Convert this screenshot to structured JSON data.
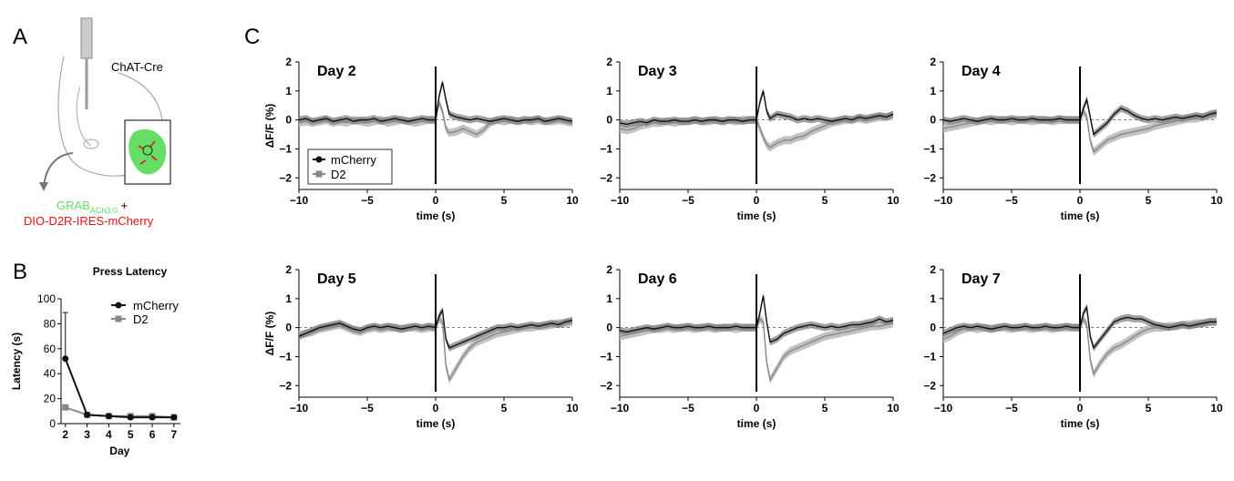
{
  "panels": {
    "a": "A",
    "b": "B",
    "c": "C"
  },
  "schematic": {
    "chat_cre": "ChAT-Cre",
    "grab_main": "GRAB",
    "grab_sub": "ACh3.0",
    "plus": " +",
    "dio": "DIO-D2R-IRES-mCherry",
    "colors": {
      "grab": "#66dd66",
      "dio": "#ee1111",
      "tissue": "#66dd66",
      "cell": "#dd1111"
    }
  },
  "colors": {
    "mcherry": "#111111",
    "d2": "#888888",
    "mcherry_band": "#777777",
    "d2_band": "#bbbbbb"
  },
  "chart_data": [
    {
      "type": "line",
      "panel": "B",
      "title": "Press Latency",
      "xlabel": "Day",
      "ylabel": "Latency (s)",
      "x": [
        2,
        3,
        4,
        5,
        6,
        7
      ],
      "xlim": [
        1.8,
        7.3
      ],
      "ylim": [
        0,
        100
      ],
      "yticks": [
        0,
        20,
        40,
        60,
        80,
        100
      ],
      "series": [
        {
          "name": "mCherry",
          "values": [
            52,
            7,
            6,
            5,
            5,
            5
          ],
          "err_upper": [
            89,
            0,
            0,
            0,
            0,
            0
          ],
          "marker": "circle"
        },
        {
          "name": "D2",
          "values": [
            13,
            7,
            6,
            6,
            6,
            5
          ],
          "marker": "square"
        }
      ],
      "legend": "top-right"
    },
    {
      "type": "line",
      "panel": "C",
      "xlabel": "time (s)",
      "ylabel": "ΔF/F (%)",
      "xlim": [
        -10,
        10
      ],
      "ylim": [
        -2.4,
        2
      ],
      "xticks": [
        -10,
        -5,
        0,
        5,
        10
      ],
      "yticks": [
        -2,
        -1,
        0,
        1,
        2
      ],
      "baseline": 0,
      "event_line": 0,
      "legend_panel": 0,
      "legend_entries": [
        "mCherry",
        "D2"
      ],
      "time": [
        -10,
        -9.5,
        -9,
        -8.5,
        -8,
        -7.5,
        -7,
        -6.5,
        -6,
        -5.5,
        -5,
        -4.5,
        -4,
        -3.5,
        -3,
        -2.5,
        -2,
        -1.5,
        -1,
        -0.5,
        0,
        0.25,
        0.5,
        0.75,
        1,
        1.5,
        2,
        2.5,
        3,
        3.5,
        4,
        4.5,
        5,
        5.5,
        6,
        6.5,
        7,
        7.5,
        8,
        8.5,
        9,
        9.5,
        10
      ],
      "days": [
        {
          "title": "Day 2",
          "mcherry": [
            0.0,
            0.05,
            -0.05,
            0.0,
            0.05,
            -0.05,
            0.0,
            0.05,
            -0.05,
            0.0,
            0.0,
            0.05,
            -0.05,
            0.0,
            0.05,
            0.0,
            -0.05,
            0.0,
            0.05,
            0.0,
            0.0,
            0.8,
            1.3,
            0.7,
            0.2,
            0.1,
            0.05,
            0.0,
            0.05,
            0.0,
            -0.05,
            0.0,
            0.05,
            0.0,
            -0.05,
            0.0,
            0.0,
            0.05,
            -0.05,
            0.0,
            0.05,
            0.0,
            -0.05
          ],
          "d2": [
            -0.1,
            -0.05,
            -0.1,
            -0.05,
            0.0,
            -0.1,
            -0.05,
            -0.1,
            0.0,
            -0.05,
            -0.1,
            -0.05,
            0.0,
            -0.1,
            -0.05,
            0.0,
            -0.05,
            -0.1,
            -0.05,
            0.0,
            0.0,
            0.6,
            0.3,
            -0.3,
            -0.45,
            -0.4,
            -0.3,
            -0.4,
            -0.5,
            -0.35,
            -0.1,
            0.0,
            -0.05,
            0.0,
            -0.05,
            0.0,
            -0.05,
            0.0,
            -0.05,
            -0.05,
            0.0,
            -0.05,
            -0.1
          ]
        },
        {
          "title": "Day 3",
          "mcherry": [
            -0.1,
            -0.15,
            -0.1,
            -0.05,
            -0.1,
            0.0,
            -0.05,
            -0.05,
            0.0,
            -0.05,
            -0.05,
            0.0,
            -0.05,
            0.0,
            0.0,
            -0.05,
            0.0,
            0.0,
            -0.05,
            0.0,
            0.0,
            0.6,
            1.0,
            0.3,
            0.05,
            0.2,
            0.15,
            0.1,
            0.0,
            0.05,
            0.0,
            0.05,
            0.0,
            -0.05,
            0.0,
            0.05,
            0.0,
            0.1,
            0.05,
            0.1,
            0.15,
            0.1,
            0.2
          ],
          "d2": [
            -0.3,
            -0.35,
            -0.3,
            -0.2,
            -0.15,
            -0.1,
            -0.1,
            -0.05,
            -0.1,
            -0.05,
            -0.05,
            0.0,
            -0.05,
            -0.05,
            0.0,
            -0.05,
            0.0,
            -0.05,
            0.0,
            0.0,
            0.0,
            -0.3,
            -0.6,
            -0.85,
            -0.95,
            -0.8,
            -0.7,
            -0.7,
            -0.6,
            -0.55,
            -0.4,
            -0.3,
            -0.2,
            -0.1,
            -0.05,
            0.0,
            0.0,
            0.05,
            0.0,
            0.05,
            0.1,
            0.1,
            0.15
          ]
        },
        {
          "title": "Day 4",
          "mcherry": [
            0.0,
            -0.05,
            0.0,
            0.05,
            0.0,
            -0.05,
            0.0,
            0.05,
            0.0,
            0.0,
            0.05,
            0.0,
            0.0,
            0.05,
            0.0,
            0.0,
            0.0,
            0.05,
            0.0,
            0.0,
            0.0,
            0.4,
            0.7,
            0.1,
            -0.5,
            -0.3,
            -0.1,
            0.2,
            0.4,
            0.3,
            0.15,
            0.05,
            0.0,
            0.05,
            0.0,
            0.05,
            0.1,
            0.05,
            0.1,
            0.15,
            0.1,
            0.2,
            0.25
          ],
          "d2": [
            -0.3,
            -0.25,
            -0.2,
            -0.15,
            -0.1,
            -0.05,
            0.0,
            -0.05,
            0.0,
            0.0,
            -0.05,
            0.0,
            0.0,
            -0.05,
            0.0,
            0.0,
            -0.05,
            0.0,
            0.0,
            0.0,
            0.0,
            0.3,
            0.1,
            -0.7,
            -1.1,
            -0.9,
            -0.7,
            -0.6,
            -0.5,
            -0.45,
            -0.4,
            -0.35,
            -0.3,
            -0.2,
            -0.15,
            -0.1,
            -0.05,
            0.0,
            0.05,
            0.05,
            0.1,
            0.15,
            0.2
          ]
        },
        {
          "title": "Day 5",
          "mcherry": [
            -0.3,
            -0.2,
            -0.1,
            0.0,
            0.05,
            0.1,
            0.15,
            0.05,
            -0.05,
            -0.1,
            0.0,
            0.05,
            0.0,
            0.05,
            0.0,
            -0.05,
            0.0,
            0.05,
            0.0,
            0.05,
            0.0,
            0.4,
            0.6,
            -0.4,
            -0.7,
            -0.6,
            -0.5,
            -0.4,
            -0.3,
            -0.2,
            -0.1,
            0.0,
            0.0,
            0.05,
            0.0,
            0.05,
            0.1,
            0.05,
            0.1,
            0.15,
            0.1,
            0.2,
            0.25
          ],
          "d2": [
            -0.25,
            -0.2,
            -0.15,
            -0.05,
            0.0,
            0.05,
            0.1,
            0.0,
            -0.1,
            -0.15,
            -0.05,
            0.0,
            -0.05,
            0.0,
            0.0,
            -0.05,
            0.0,
            0.0,
            -0.05,
            0.0,
            0.0,
            0.3,
            0.2,
            -1.3,
            -1.8,
            -1.4,
            -1.0,
            -0.7,
            -0.5,
            -0.4,
            -0.3,
            -0.2,
            -0.15,
            -0.1,
            -0.05,
            0.0,
            0.0,
            0.05,
            0.05,
            0.1,
            0.15,
            0.15,
            0.2
          ]
        },
        {
          "title": "Day 6",
          "mcherry": [
            -0.1,
            -0.15,
            -0.1,
            -0.05,
            0.0,
            -0.05,
            0.0,
            0.05,
            0.0,
            0.0,
            0.05,
            0.0,
            0.0,
            0.05,
            0.0,
            0.0,
            0.0,
            0.05,
            0.0,
            0.0,
            0.0,
            0.5,
            1.1,
            0.2,
            -0.5,
            -0.4,
            -0.2,
            -0.1,
            0.0,
            0.05,
            0.1,
            0.05,
            0.0,
            0.05,
            0.0,
            0.05,
            0.1,
            0.1,
            0.15,
            0.2,
            0.3,
            0.2,
            0.25
          ],
          "d2": [
            -0.3,
            -0.25,
            -0.2,
            -0.15,
            -0.1,
            -0.05,
            -0.05,
            0.0,
            -0.05,
            0.0,
            0.0,
            -0.05,
            0.0,
            0.0,
            -0.05,
            0.0,
            0.0,
            -0.05,
            0.0,
            0.0,
            0.0,
            0.3,
            0.2,
            -1.2,
            -1.8,
            -1.4,
            -1.0,
            -0.8,
            -0.7,
            -0.6,
            -0.5,
            -0.4,
            -0.3,
            -0.25,
            -0.2,
            -0.15,
            -0.1,
            -0.05,
            0.0,
            0.05,
            0.05,
            0.1,
            0.15
          ]
        },
        {
          "title": "Day 7",
          "mcherry": [
            -0.2,
            -0.1,
            0.0,
            0.05,
            0.0,
            0.05,
            0.0,
            -0.05,
            0.0,
            0.05,
            0.0,
            0.0,
            0.05,
            0.0,
            0.0,
            0.05,
            0.0,
            0.0,
            0.05,
            0.0,
            0.0,
            0.5,
            0.7,
            -0.3,
            -0.7,
            -0.4,
            -0.1,
            0.2,
            0.3,
            0.35,
            0.3,
            0.3,
            0.2,
            0.1,
            0.05,
            0.0,
            0.05,
            0.1,
            0.05,
            0.1,
            0.15,
            0.2,
            0.2
          ],
          "d2": [
            -0.4,
            -0.3,
            -0.15,
            -0.05,
            0.0,
            -0.05,
            0.0,
            -0.05,
            0.0,
            0.0,
            -0.05,
            0.0,
            0.0,
            -0.05,
            0.0,
            0.0,
            -0.05,
            0.0,
            0.0,
            0.0,
            0.0,
            0.3,
            0.1,
            -1.1,
            -1.6,
            -1.2,
            -0.9,
            -0.7,
            -0.6,
            -0.45,
            -0.3,
            -0.15,
            -0.05,
            0.0,
            0.0,
            0.05,
            0.05,
            0.1,
            0.1,
            0.15,
            0.15,
            0.2,
            0.2
          ]
        }
      ]
    }
  ]
}
